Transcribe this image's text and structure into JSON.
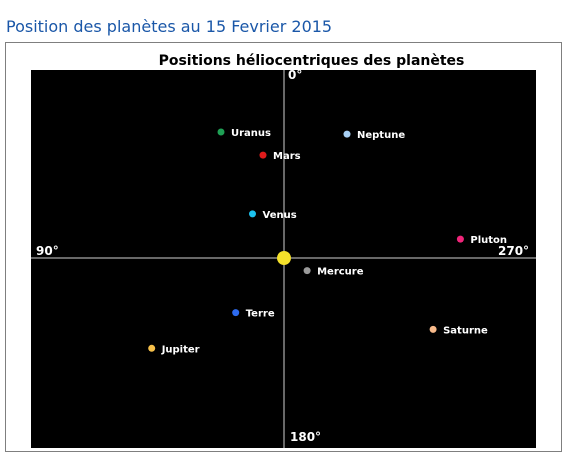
{
  "heading": "Position des planètes au 15 Fevrier 2015",
  "colors": {
    "heading": "#1a57a8",
    "plot_background": "#000000",
    "axes": "#cfcfcf",
    "sun": "#f5e12b"
  },
  "chart_data": {
    "type": "scatter",
    "title": "Positions héliocentriques des planètes",
    "axis_labels": {
      "top": "0°",
      "left": "90°",
      "right": "270°",
      "bottom": "180°"
    },
    "xlim": [
      -12,
      12
    ],
    "ylim": [
      -9,
      9
    ],
    "sun": {
      "x": 0,
      "y": 0
    },
    "points": [
      {
        "name": "Uranus",
        "x": -3.0,
        "y": 6.0,
        "color": "#1fa055"
      },
      {
        "name": "Neptune",
        "x": 3.0,
        "y": 5.9,
        "color": "#a8d0f5"
      },
      {
        "name": "Mars",
        "x": -1.0,
        "y": 4.9,
        "color": "#e01b1b"
      },
      {
        "name": "Venus",
        "x": -1.5,
        "y": 2.1,
        "color": "#1cc2ee"
      },
      {
        "name": "Pluton",
        "x": 8.4,
        "y": 0.9,
        "color": "#f0257a"
      },
      {
        "name": "Mercure",
        "x": 1.1,
        "y": -0.6,
        "color": "#9a9a9a"
      },
      {
        "name": "Terre",
        "x": -2.3,
        "y": -2.6,
        "color": "#2d6bf0"
      },
      {
        "name": "Saturne",
        "x": 7.1,
        "y": -3.4,
        "color": "#f7b98a"
      },
      {
        "name": "Jupiter",
        "x": -6.3,
        "y": -4.3,
        "color": "#f6c04a"
      }
    ]
  }
}
